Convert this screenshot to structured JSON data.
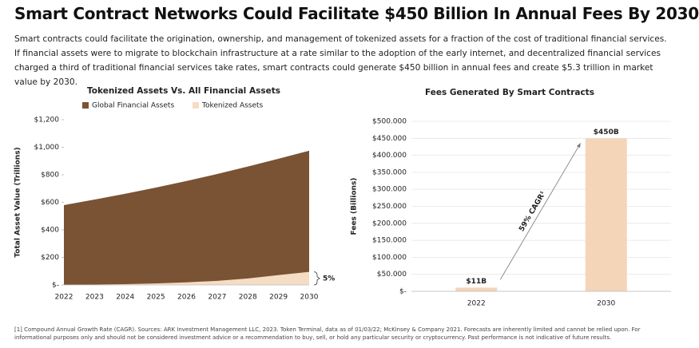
{
  "title": "Smart Contract Networks Could Facilitate $450 Billion In Annual Fees By 2030",
  "subtitle": "Smart contracts could facilitate the origination, ownership, and management of tokenized assets for a fraction of the cost of traditional financial services. If financial assets were to migrate to blockchain infrastructure at a rate similar to the adoption of the early internet, and decentralized financial services charged a third of traditional financial services take rates, smart contracts could generate $450 billion in annual fees and create $5.3 trillion in market value by 2030.",
  "footnote": "[1] Compound Annual Growth Rate (CAGR). Sources: ARK Investment Management LLC, 2023. Token Terminal, data as of 01/03/22; McKinsey & Company 2021. Forecasts are inherently limited and cannot be relied upon. For informational purposes only and should not be considered investment advice or a recommendation to buy, sell, or hold any particular security or cryptocurrency. Past performance is not indicative of future results.",
  "chart_data": [
    {
      "type": "area",
      "title": "Tokenized Assets Vs. All Financial Assets",
      "y_label": "Total Asset Value (Trillions)",
      "x": [
        2022,
        2023,
        2024,
        2025,
        2026,
        2027,
        2028,
        2029,
        2030
      ],
      "xlim": [
        2022,
        2030
      ],
      "xticks": [
        2022,
        2023,
        2024,
        2025,
        2026,
        2027,
        2028,
        2029,
        2030
      ],
      "series": [
        {
          "name": "Global Financial Assets",
          "color": "#7a5234",
          "values": [
            580,
            620,
            662,
            707,
            755,
            806,
            860,
            917,
            975
          ]
        },
        {
          "name": "Tokenized Assets",
          "color": "#f5dcc4",
          "values": [
            1,
            3,
            6,
            11,
            19,
            30,
            47,
            72,
            95
          ]
        }
      ],
      "ylim": [
        0,
        1200
      ],
      "yticks": [
        {
          "value": 0,
          "label": "$-"
        },
        {
          "value": 200,
          "label": "$200"
        },
        {
          "value": 400,
          "label": "$400"
        },
        {
          "value": 600,
          "label": "$600"
        },
        {
          "value": 800,
          "label": "$800"
        },
        {
          "value": 1000,
          "label": "$1,000"
        },
        {
          "value": 1200,
          "label": "$1,200"
        }
      ],
      "annotation": "5%",
      "grid": false
    },
    {
      "type": "bar",
      "title": "Fees Generated By Smart Contracts",
      "y_label": "Fees (Billions)",
      "categories": [
        "2022",
        "2030"
      ],
      "values": [
        11,
        450
      ],
      "value_labels": [
        "$11B",
        "$450B"
      ],
      "color": "#f5d5b8",
      "ylim": [
        0,
        500
      ],
      "yticks": [
        {
          "value": 0,
          "label": "$-"
        },
        {
          "value": 50,
          "label": "$50.000"
        },
        {
          "value": 100,
          "label": "$100.000"
        },
        {
          "value": 150,
          "label": "$150.000"
        },
        {
          "value": 200,
          "label": "$200.000"
        },
        {
          "value": 250,
          "label": "$250.000"
        },
        {
          "value": 300,
          "label": "$300.000"
        },
        {
          "value": 350,
          "label": "$350.000"
        },
        {
          "value": 400,
          "label": "$400.000"
        },
        {
          "value": 450,
          "label": "$450.000"
        },
        {
          "value": 500,
          "label": "$500.000"
        }
      ],
      "annotation": "59% CAGR¹",
      "grid": true
    }
  ]
}
